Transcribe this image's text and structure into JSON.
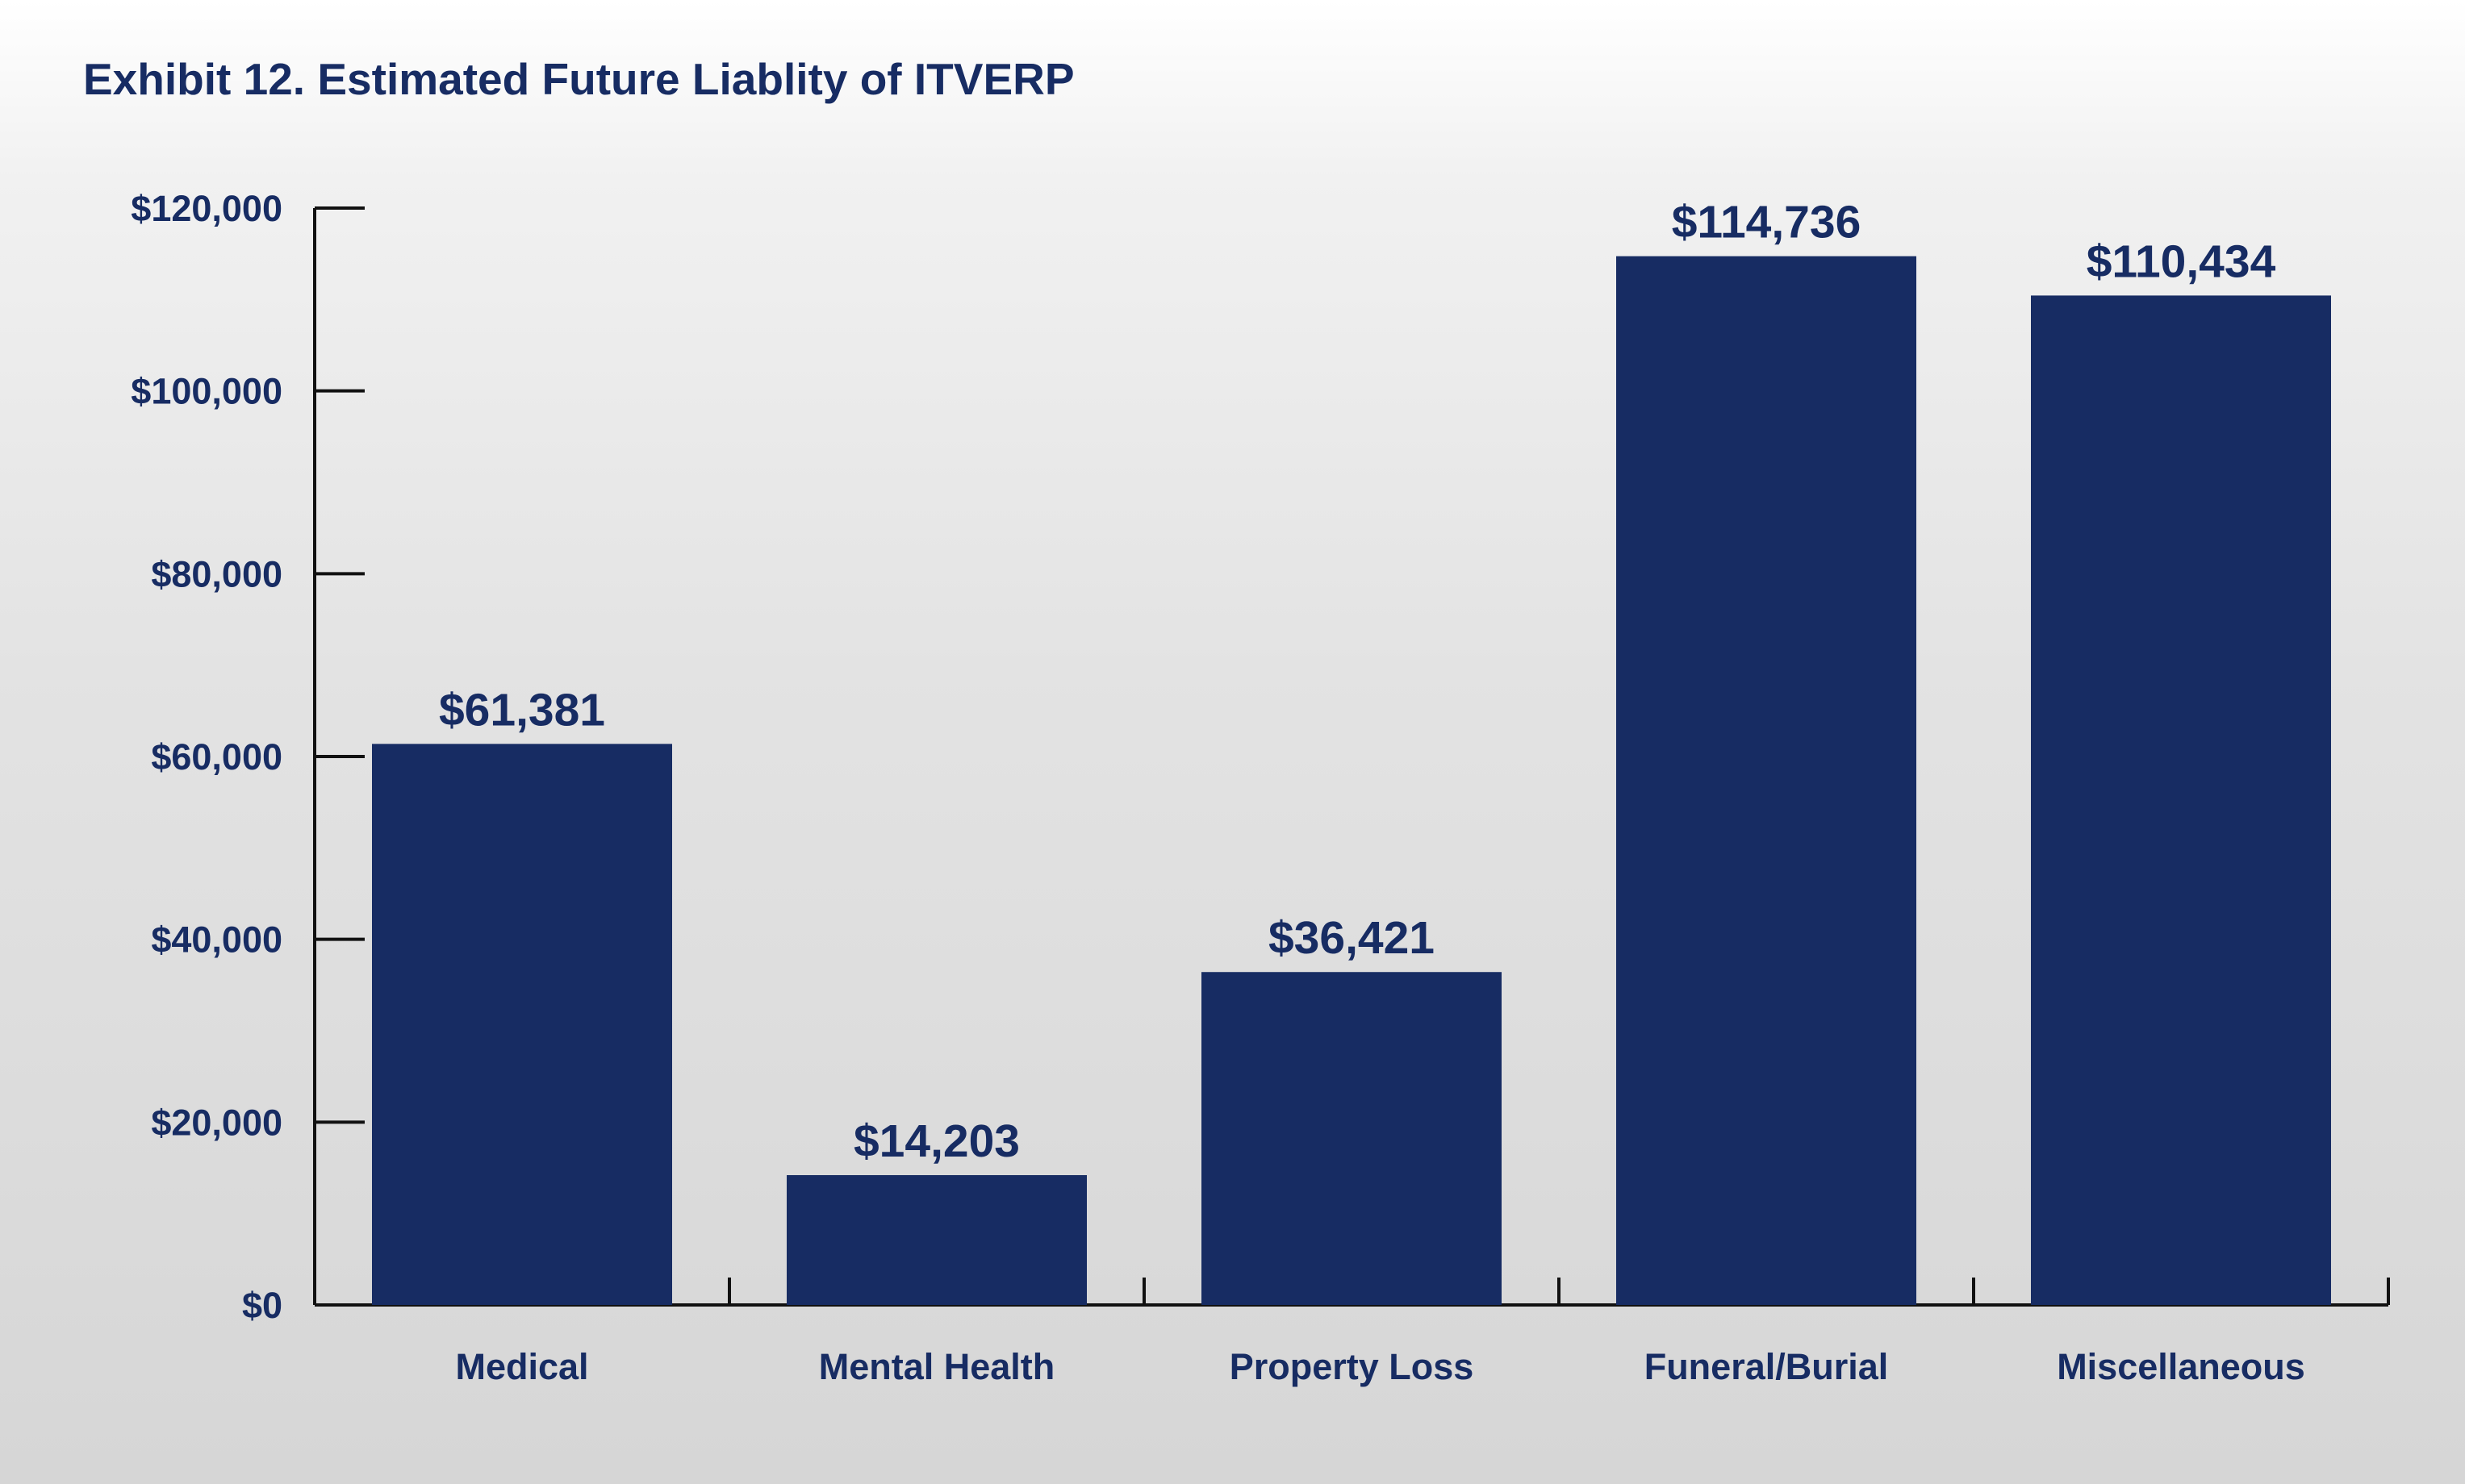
{
  "chart_data": {
    "type": "bar",
    "title": "Exhibit 12. Estimated Future Liablity of ITVERP",
    "xlabel": "",
    "ylabel": "",
    "categories": [
      "Medical",
      "Mental Health",
      "Property Loss",
      "Funeral/Burial",
      "Miscellaneous"
    ],
    "values": [
      61381,
      14203,
      36421,
      114736,
      110434
    ],
    "value_labels": [
      "$61,381",
      "$14,203",
      "$36,421",
      "$114,736",
      "$110,434"
    ],
    "ylim": [
      0,
      120000
    ],
    "yticks": [
      0,
      20000,
      40000,
      60000,
      80000,
      100000,
      120000
    ],
    "ytick_labels": [
      "$0",
      "$20,000",
      "$40,000",
      "$60,000",
      "$80,000",
      "$100,000",
      "$120,000"
    ],
    "grid": false,
    "legend": "none",
    "bar_color": "#172c63",
    "text_color": "#172c63"
  }
}
